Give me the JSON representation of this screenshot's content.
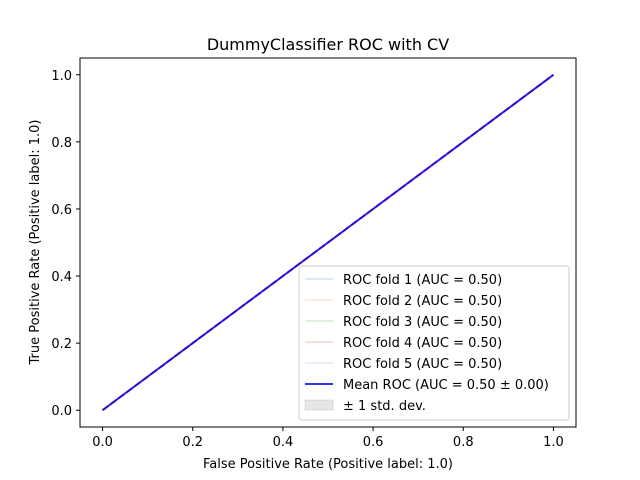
{
  "chart_data": {
    "type": "line",
    "title": "DummyClassifier ROC with CV",
    "xlabel": "False Positive Rate (Positive label: 1.0)",
    "ylabel": "True Positive Rate (Positive label: 1.0)",
    "xlim": [
      -0.05,
      1.05
    ],
    "ylim": [
      -0.05,
      1.05
    ],
    "xticks": [
      0.0,
      0.2,
      0.4,
      0.6,
      0.8,
      1.0
    ],
    "xtick_labels": [
      "0.0",
      "0.2",
      "0.4",
      "0.6",
      "0.8",
      "1.0"
    ],
    "yticks": [
      0.0,
      0.2,
      0.4,
      0.6,
      0.8,
      1.0
    ],
    "ytick_labels": [
      "0.0",
      "0.2",
      "0.4",
      "0.6",
      "0.8",
      "1.0"
    ],
    "grid": false,
    "legend_position": "lower-right",
    "series": [
      {
        "name": "ROC fold 1 (AUC = 0.50)",
        "x": [
          0,
          1
        ],
        "y": [
          0,
          1
        ],
        "color": "#1f77b4",
        "kind": "fold"
      },
      {
        "name": "ROC fold 2 (AUC = 0.50)",
        "x": [
          0,
          1
        ],
        "y": [
          0,
          1
        ],
        "color": "#ff7f0e",
        "kind": "fold"
      },
      {
        "name": "ROC fold 3 (AUC = 0.50)",
        "x": [
          0,
          1
        ],
        "y": [
          0,
          1
        ],
        "color": "#2ca02c",
        "kind": "fold"
      },
      {
        "name": "ROC fold 4 (AUC = 0.50)",
        "x": [
          0,
          1
        ],
        "y": [
          0,
          1
        ],
        "color": "#d62728",
        "kind": "fold"
      },
      {
        "name": "ROC fold 5 (AUC = 0.50)",
        "x": [
          0,
          1
        ],
        "y": [
          0,
          1
        ],
        "color": "#9467bd",
        "kind": "fold"
      },
      {
        "name": "Mean ROC (AUC = 0.50 ± 0.00)",
        "x": [
          0,
          1
        ],
        "y": [
          0,
          1
        ],
        "color": "#0000ff",
        "kind": "mean"
      },
      {
        "name": "± 1 std. dev.",
        "x": [
          0,
          1
        ],
        "y_lower": [
          0,
          1
        ],
        "y_upper": [
          0,
          1
        ],
        "color": "#808080",
        "kind": "band"
      }
    ],
    "chance_line": {
      "x": [
        0,
        1
      ],
      "y": [
        0,
        1
      ],
      "color": "#ff0000"
    }
  }
}
